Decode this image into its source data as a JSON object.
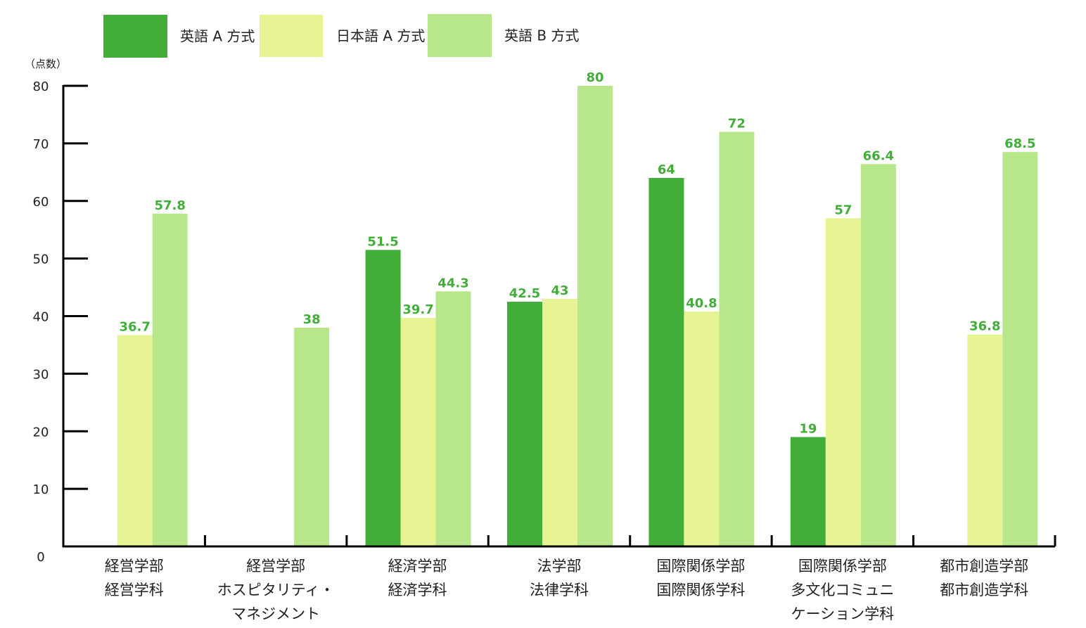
{
  "chart_data": {
    "type": "bar",
    "title": "",
    "xlabel": "",
    "ylabel": "（点数）",
    "ylim": [
      0,
      80
    ],
    "yticks": [
      0,
      10,
      20,
      30,
      40,
      50,
      60,
      70,
      80
    ],
    "grid": false,
    "legend_placement": "top-left",
    "categories": [
      "経営学部\n経営学科",
      "経営学部\nホスピタリティ・\nマネジメント",
      "経済学部\n経済学科",
      "法学部\n法律学科",
      "国際関係学部\n国際関係学科",
      "国際関係学部\n多文化コミュニ\nケーション学科",
      "都市創造学部\n都市創造学科"
    ],
    "series": [
      {
        "name": "英語 A 方式",
        "color": "#43ad3a",
        "values": [
          null,
          null,
          51.5,
          42.5,
          64,
          19,
          null
        ]
      },
      {
        "name": "日本語 A 方式",
        "color": "#e8f494",
        "values": [
          36.7,
          null,
          39.7,
          43,
          40.8,
          57,
          36.8
        ]
      },
      {
        "name": "英語 B 方式",
        "color": "#b8e68a",
        "values": [
          57.8,
          38,
          44.3,
          80,
          72,
          66.4,
          68.5
        ]
      }
    ],
    "value_label_color": "#43ad3a",
    "axis_color": "#000000"
  }
}
